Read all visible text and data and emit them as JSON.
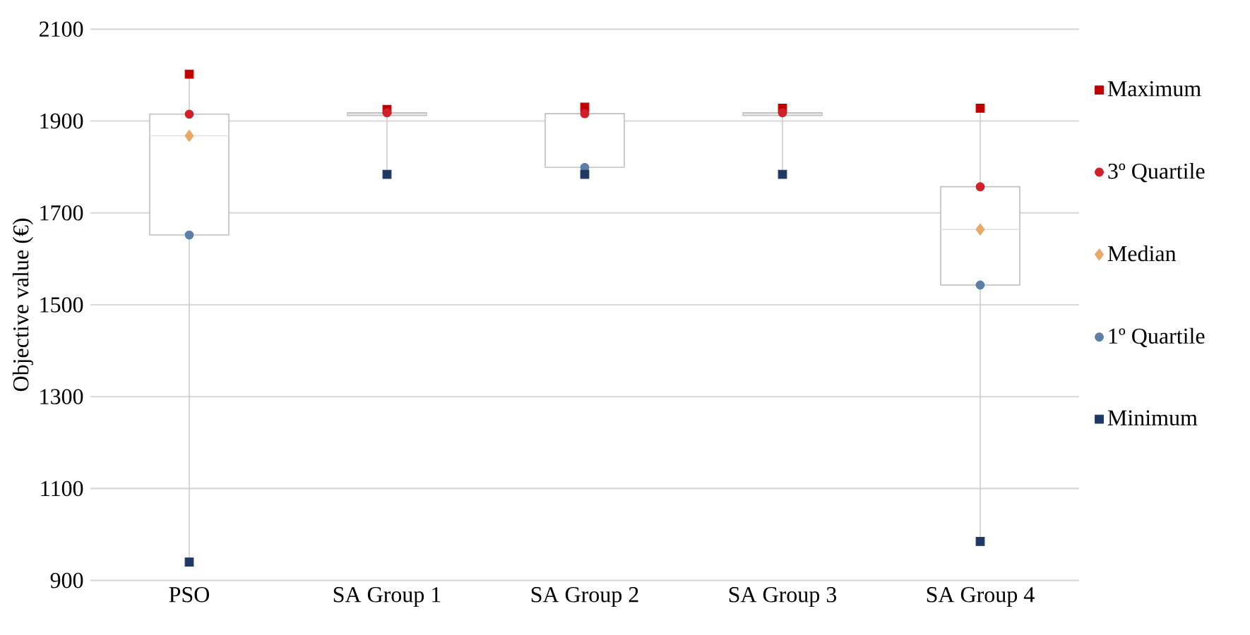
{
  "chart_data": {
    "type": "box",
    "ylabel": "Objective value (€)",
    "categories": [
      "PSO",
      "SA Group 1",
      "SA Group 2",
      "SA Group 3",
      "SA Group 4"
    ],
    "boxes": [
      {
        "low": 940,
        "q1": 1652,
        "median": 1868,
        "q3": 1915,
        "high": 2002
      },
      {
        "low": 1784,
        "q1": 1912,
        "median": 1915,
        "q3": 1918,
        "high": 1925
      },
      {
        "low": 1784,
        "q1": 1799,
        "median": 1800,
        "q3": 1916,
        "high": 1930
      },
      {
        "low": 1784,
        "q1": 1912,
        "median": 1915,
        "q3": 1918,
        "high": 1928
      },
      {
        "low": 985,
        "q1": 1543,
        "median": 1664,
        "q3": 1757,
        "high": 1928
      }
    ],
    "series": [
      {
        "type": "scatter",
        "name": "Maximum",
        "color": "#c00000",
        "marker": "square",
        "values": [
          2002,
          1925,
          1930,
          1928,
          1928
        ]
      },
      {
        "type": "scatter",
        "name": "3º Quartile",
        "color": "#d0202a",
        "marker": "circle",
        "values": [
          1915,
          1918,
          1916,
          1918,
          1757
        ]
      },
      {
        "type": "scatter",
        "name": "Median",
        "color": "#e8a869",
        "marker": "diamond",
        "values": [
          1868,
          null,
          null,
          null,
          1664
        ]
      },
      {
        "type": "scatter",
        "name": "1º Quartile",
        "color": "#5b7fa6",
        "marker": "circle",
        "values": [
          1652,
          null,
          1799,
          null,
          1543
        ]
      },
      {
        "type": "scatter",
        "name": "Minimum",
        "color": "#1f3864",
        "marker": "square",
        "values": [
          940,
          1784,
          1784,
          1784,
          985
        ]
      }
    ],
    "ylim": [
      900,
      2100
    ],
    "yticks": [
      900,
      1100,
      1300,
      1500,
      1700,
      1900,
      2100
    ],
    "grid": "y",
    "legend": "right"
  }
}
